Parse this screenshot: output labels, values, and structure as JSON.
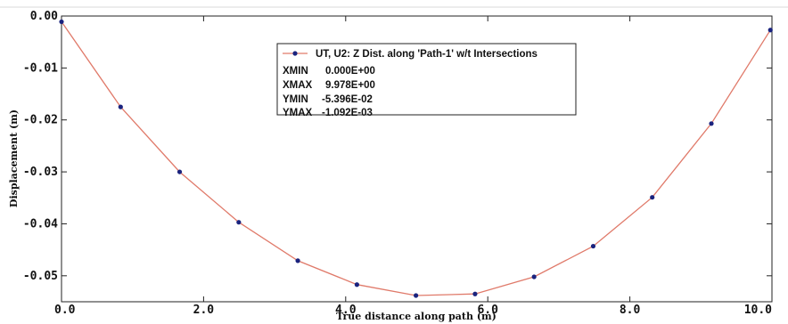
{
  "chart_data": {
    "type": "line",
    "xlabel": "True distance along path (m)",
    "ylabel": "Displacement (m)",
    "xlim": [
      0.0,
      10.0
    ],
    "ylim": [
      -0.055,
      0.0
    ],
    "x_ticks": [
      0,
      2,
      4,
      6,
      8,
      10
    ],
    "x_tick_labels": [
      "0.0",
      "2.0",
      "4.0",
      "6.0",
      "8.0",
      "10.0"
    ],
    "y_ticks": [
      0.0,
      -0.01,
      -0.02,
      -0.03,
      -0.04,
      -0.05
    ],
    "y_tick_labels": [
      "0.00",
      "-0.01",
      "-0.02",
      "-0.03",
      "-0.04",
      "-0.05"
    ],
    "grid": false,
    "legend_position": "top-center",
    "series": [
      {
        "name": "UT, U2: Z Dist. along 'Path-1' w/t Intersections",
        "color": "#e07a6a",
        "marker_color": "#1a237e",
        "x": [
          0.0,
          0.832,
          1.663,
          2.495,
          3.326,
          4.158,
          4.989,
          5.821,
          6.652,
          7.484,
          8.315,
          9.147,
          9.978
        ],
        "y": [
          -0.0011,
          -0.0175,
          -0.03,
          -0.0397,
          -0.0471,
          -0.0517,
          -0.0538,
          -0.0535,
          -0.0502,
          -0.0443,
          -0.0349,
          -0.0207,
          -0.0027
        ]
      }
    ],
    "legend_stats": [
      {
        "label": "XMIN",
        "value": "0.000E+00"
      },
      {
        "label": "XMAX",
        "value": "9.978E+00"
      },
      {
        "label": "YMIN",
        "value": "-5.396E-02"
      },
      {
        "label": "YMAX",
        "value": "-1.092E-03"
      }
    ]
  }
}
